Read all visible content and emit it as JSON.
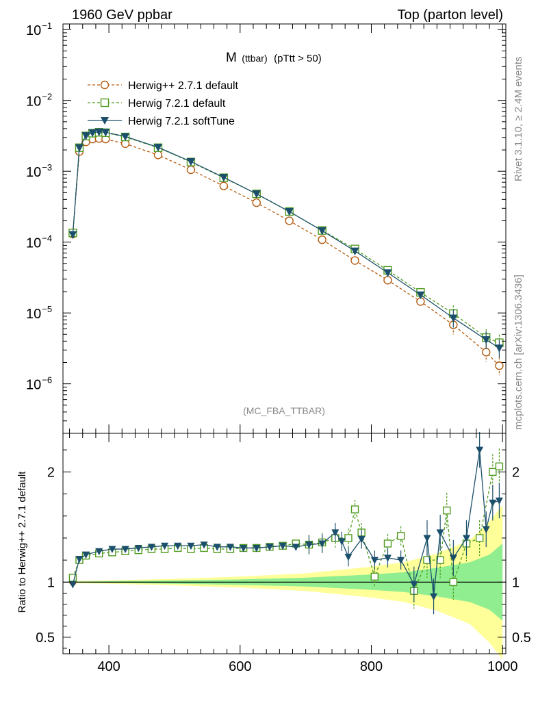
{
  "header": {
    "left": "1960 GeV ppbar",
    "right": "Top (parton level)"
  },
  "side_text": {
    "rivet": "Rivet 3.1.10, ≥ 2.4M events",
    "mcplots": "mcplots.cern.ch [arXiv:1306.3436]"
  },
  "chart_data": [
    {
      "type": "line",
      "title": "M (ttbar) (pTtt > 50)",
      "title_parts": {
        "main": "M",
        "sub": "(ttbar)",
        "cut": "(pTtt > 50)"
      },
      "analysis": "(MC_FBA_TTBAR)",
      "y_scale": "log",
      "xlim": [
        330,
        1005
      ],
      "ylim": [
        2e-07,
        0.12
      ],
      "y_ticks": [
        {
          "value": 1e-06,
          "base": "10",
          "exp": "−6"
        },
        {
          "value": 1e-05,
          "base": "10",
          "exp": "−5"
        },
        {
          "value": 0.0001,
          "base": "10",
          "exp": "−4"
        },
        {
          "value": 0.001,
          "base": "10",
          "exp": "−3"
        },
        {
          "value": 0.01,
          "base": "10",
          "exp": "−2"
        },
        {
          "value": 0.1,
          "base": "10",
          "exp": "−1"
        }
      ],
      "legend_position": "top-left",
      "series": [
        {
          "name": "Herwig++ 2.7.1 default",
          "color": "#b35b0f",
          "marker": "circle",
          "style": "dashed",
          "x": [
            345,
            355,
            365,
            375,
            385,
            395,
            425,
            475,
            525,
            575,
            625,
            675,
            725,
            775,
            825,
            875,
            925,
            975,
            995
          ],
          "y": [
            0.00013,
            0.0019,
            0.0026,
            0.00285,
            0.0029,
            0.00285,
            0.00245,
            0.0017,
            0.00105,
            0.00062,
            0.00036,
            0.0002,
            0.000108,
            5.5e-05,
            2.9e-05,
            1.45e-05,
            6.8e-06,
            2.8e-06,
            1.8e-06
          ]
        },
        {
          "name": "Herwig 7.2.1 default",
          "color": "#4f9b1e",
          "marker": "square",
          "style": "dashed",
          "x": [
            345,
            355,
            365,
            375,
            385,
            395,
            425,
            475,
            525,
            575,
            625,
            675,
            725,
            775,
            825,
            875,
            925,
            975,
            995
          ],
          "y": [
            0.000135,
            0.00215,
            0.00315,
            0.00345,
            0.00355,
            0.0035,
            0.00305,
            0.00215,
            0.00135,
            0.00081,
            0.00048,
            0.00027,
            0.000146,
            8e-05,
            4e-05,
            1.95e-05,
            9.8e-06,
            4.5e-06,
            3.8e-06
          ]
        },
        {
          "name": "Herwig 7.2.1 softTune",
          "color": "#1b4f6b",
          "marker": "triangle-down",
          "style": "solid",
          "x": [
            345,
            355,
            365,
            375,
            385,
            395,
            425,
            475,
            525,
            575,
            625,
            675,
            725,
            775,
            825,
            875,
            925,
            975,
            995
          ],
          "y": [
            0.000128,
            0.00215,
            0.00318,
            0.0035,
            0.0036,
            0.00355,
            0.0031,
            0.00218,
            0.00137,
            0.00082,
            0.00048,
            0.00027,
            0.000145,
            7.5e-05,
            3.7e-05,
            1.8e-05,
            8.5e-06,
            4.2e-06,
            3.2e-06
          ]
        }
      ]
    },
    {
      "type": "line",
      "ylabel": "Ratio to Herwig++ 2.7.1 default",
      "xlim": [
        330,
        1005
      ],
      "ylim": [
        0.35,
        2.35
      ],
      "x_ticks": [
        400,
        600,
        800,
        1000
      ],
      "y_ticks": [
        0.5,
        1,
        2
      ],
      "x_tick_labels": [
        "400",
        "600",
        "800",
        "1000"
      ],
      "y_tick_labels": [
        "0.5",
        "1",
        "2"
      ],
      "band_colors": {
        "inner": "#90ee90",
        "outer": "#ffff99"
      },
      "band_x": [
        345,
        400,
        500,
        600,
        700,
        800,
        850,
        900,
        950,
        980,
        1000
      ],
      "band_inner": [
        0.005,
        0.008,
        0.015,
        0.025,
        0.04,
        0.07,
        0.09,
        0.13,
        0.18,
        0.25,
        0.35
      ],
      "band_outer": [
        0.01,
        0.015,
        0.03,
        0.05,
        0.08,
        0.14,
        0.18,
        0.26,
        0.38,
        0.55,
        0.7
      ],
      "series": [
        {
          "name": "Herwig 7.2.1 default",
          "color": "#4f9b1e",
          "marker": "square",
          "style": "dashed",
          "x": [
            345,
            355,
            365,
            385,
            405,
            425,
            445,
            465,
            485,
            505,
            525,
            545,
            565,
            585,
            605,
            625,
            645,
            665,
            685,
            705,
            725,
            745,
            765,
            775,
            785,
            805,
            825,
            845,
            865,
            885,
            905,
            915,
            925,
            945,
            965,
            985,
            995
          ],
          "y": [
            1.04,
            1.2,
            1.24,
            1.26,
            1.27,
            1.28,
            1.29,
            1.3,
            1.3,
            1.31,
            1.3,
            1.31,
            1.3,
            1.3,
            1.31,
            1.31,
            1.32,
            1.33,
            1.35,
            1.34,
            1.36,
            1.4,
            1.4,
            1.66,
            1.45,
            1.05,
            1.35,
            1.42,
            0.92,
            1.2,
            1.2,
            1.65,
            1.0,
            1.35,
            1.4,
            2.0,
            2.05
          ]
        },
        {
          "name": "Herwig 7.2.1 softTune",
          "color": "#1b4f6b",
          "marker": "triangle-down",
          "style": "solid",
          "x": [
            345,
            355,
            365,
            385,
            405,
            425,
            445,
            465,
            485,
            505,
            525,
            545,
            565,
            585,
            605,
            625,
            645,
            665,
            685,
            705,
            725,
            745,
            755,
            765,
            785,
            805,
            825,
            845,
            865,
            885,
            895,
            905,
            925,
            945,
            965,
            975,
            985,
            995
          ],
          "y": [
            0.98,
            1.21,
            1.25,
            1.28,
            1.3,
            1.3,
            1.31,
            1.32,
            1.33,
            1.33,
            1.33,
            1.34,
            1.32,
            1.32,
            1.31,
            1.31,
            1.32,
            1.33,
            1.32,
            1.34,
            1.35,
            1.45,
            1.37,
            1.23,
            1.39,
            1.2,
            1.22,
            1.2,
            0.98,
            1.4,
            0.87,
            1.45,
            1.22,
            1.4,
            2.2,
            1.48,
            1.72,
            1.74
          ]
        }
      ]
    }
  ]
}
